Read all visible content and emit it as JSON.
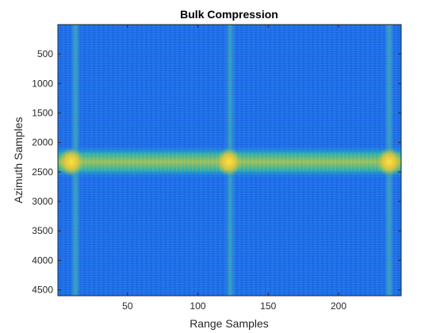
{
  "chart_data": {
    "type": "heatmap",
    "title": "Bulk Compression",
    "xlabel": "Range Samples",
    "ylabel": "Azimuth Samples",
    "xlim": [
      0.5,
      244.5
    ],
    "ylim": [
      1,
      4600
    ],
    "y_direction": "reversed",
    "x_ticks": [
      50,
      100,
      150,
      200
    ],
    "y_ticks": [
      500,
      1000,
      1500,
      2000,
      2500,
      3000,
      3500,
      4000,
      4500
    ],
    "colormap": "parula",
    "colors": {
      "background_field": "#1f6fe8",
      "band": "#2fbfa0",
      "band_core": "#a8c94a",
      "hotspot": "#f5d22a",
      "line": "#26a6c9"
    },
    "features": {
      "vertical_lines_x": [
        13,
        123,
        236
      ],
      "horizontal_band_y_center": 2330,
      "horizontal_band_half_width": 170,
      "hotspots": [
        {
          "x": 10,
          "y": 2330
        },
        {
          "x": 122,
          "y": 2330
        },
        {
          "x": 236,
          "y": 2330
        }
      ]
    }
  }
}
